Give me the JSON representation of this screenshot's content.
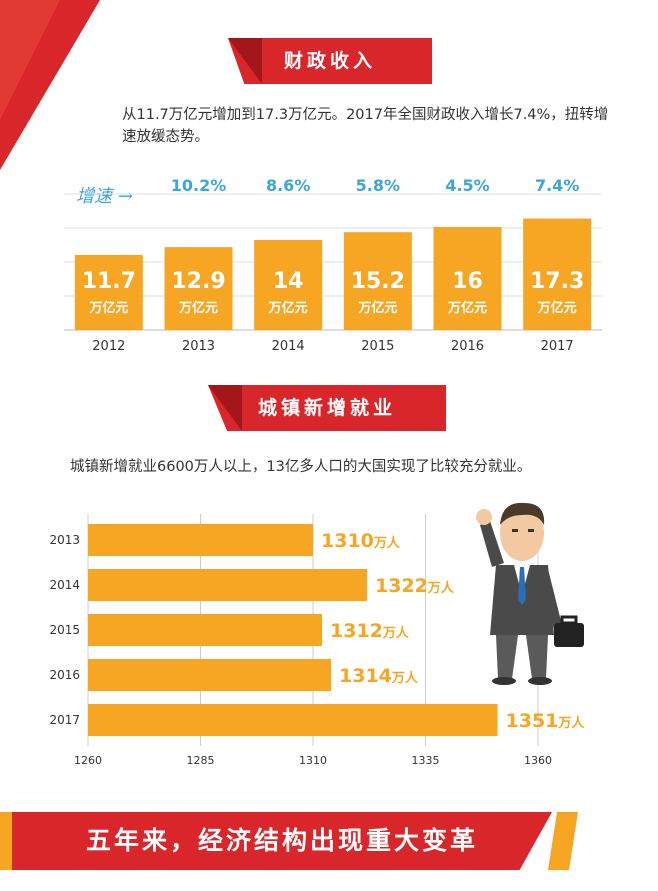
{
  "section1": {
    "title": "财政收入",
    "description": "从11.7万亿元增加到17.3万亿元。2017年全国财政收入增长7.4%，扭转增速放缓态势。"
  },
  "section2": {
    "title": "城镇新增就业",
    "description": "城镇新增就业6600万人以上，13亿多人口的大国实现了比较充分就业。"
  },
  "footer": {
    "title": "五年来，经济结构出现重大变革"
  },
  "colors": {
    "bar": "#f6a623",
    "accent_red": "#d9262a",
    "growth_blue": "#3aa6dd"
  },
  "chart_data": [
    {
      "type": "bar",
      "speed_label": "增速 →",
      "unit_label": "万亿元",
      "categories": [
        "2012",
        "2013",
        "2014",
        "2015",
        "2016",
        "2017"
      ],
      "values": [
        11.7,
        12.9,
        14,
        15.2,
        16,
        17.3
      ],
      "value_labels": [
        "11.7",
        "12.9",
        "14",
        "15.2",
        "16",
        "17.3"
      ],
      "growth_labels": [
        "",
        "10.2%",
        "8.6%",
        "5.8%",
        "4.5%",
        "7.4%"
      ],
      "grid": true
    },
    {
      "type": "bar",
      "orientation": "horizontal",
      "categories": [
        "2013",
        "2014",
        "2015",
        "2016",
        "2017"
      ],
      "values": [
        1310,
        1322,
        1312,
        1314,
        1351
      ],
      "unit_label": "万人",
      "xlim": [
        1260,
        1360
      ],
      "xticks": [
        "1260",
        "1285",
        "1310",
        "1335",
        "1360"
      ],
      "grid": true
    }
  ]
}
